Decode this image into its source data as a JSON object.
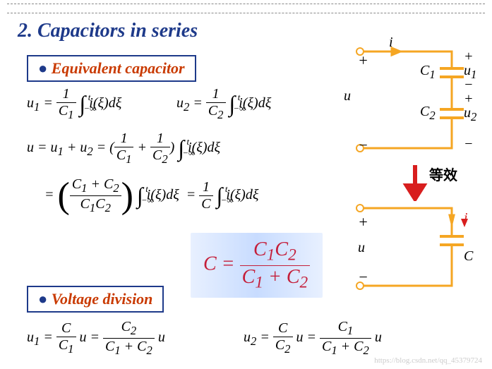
{
  "title": "2. Capacitors in series",
  "sections": {
    "equiv": "Equivalent capacitor",
    "vdiv": "Voltage division"
  },
  "equations": {
    "u1": "u<sub>1</sub>",
    "u2": "u<sub>2</sub>",
    "u": "u",
    "integral": "i(ξ)dξ",
    "C1": "C<sub>1</sub>",
    "C2": "C<sub>2</sub>",
    "C": "C",
    "one": "1",
    "sum": "u = u<sub>1</sub> + u<sub>2</sub>",
    "t": "t",
    "ninf": "−∞"
  },
  "highlight": {
    "lhs": "C =",
    "num": "C<sub>1</sub>C<sub>2</sub>",
    "den": "C<sub>1</sub> + C<sub>2</sub>"
  },
  "circuit": {
    "i": "i",
    "plus": "+",
    "minus": "−",
    "u": "u",
    "u1": "u<sub>1</sub>",
    "u2": "u<sub>2</sub>",
    "C1": "C<sub>1</sub>",
    "C2": "C<sub>2</sub>",
    "C": "C",
    "equiv_label": "等效"
  },
  "watermark": "https://blog.csdn.net/qq_45379724",
  "colors": {
    "title": "#1e3a8a",
    "section": "#c93a00",
    "wire": "#f5a623",
    "highlight_text": "#c41e3a",
    "arrow": "#d81e1e"
  }
}
